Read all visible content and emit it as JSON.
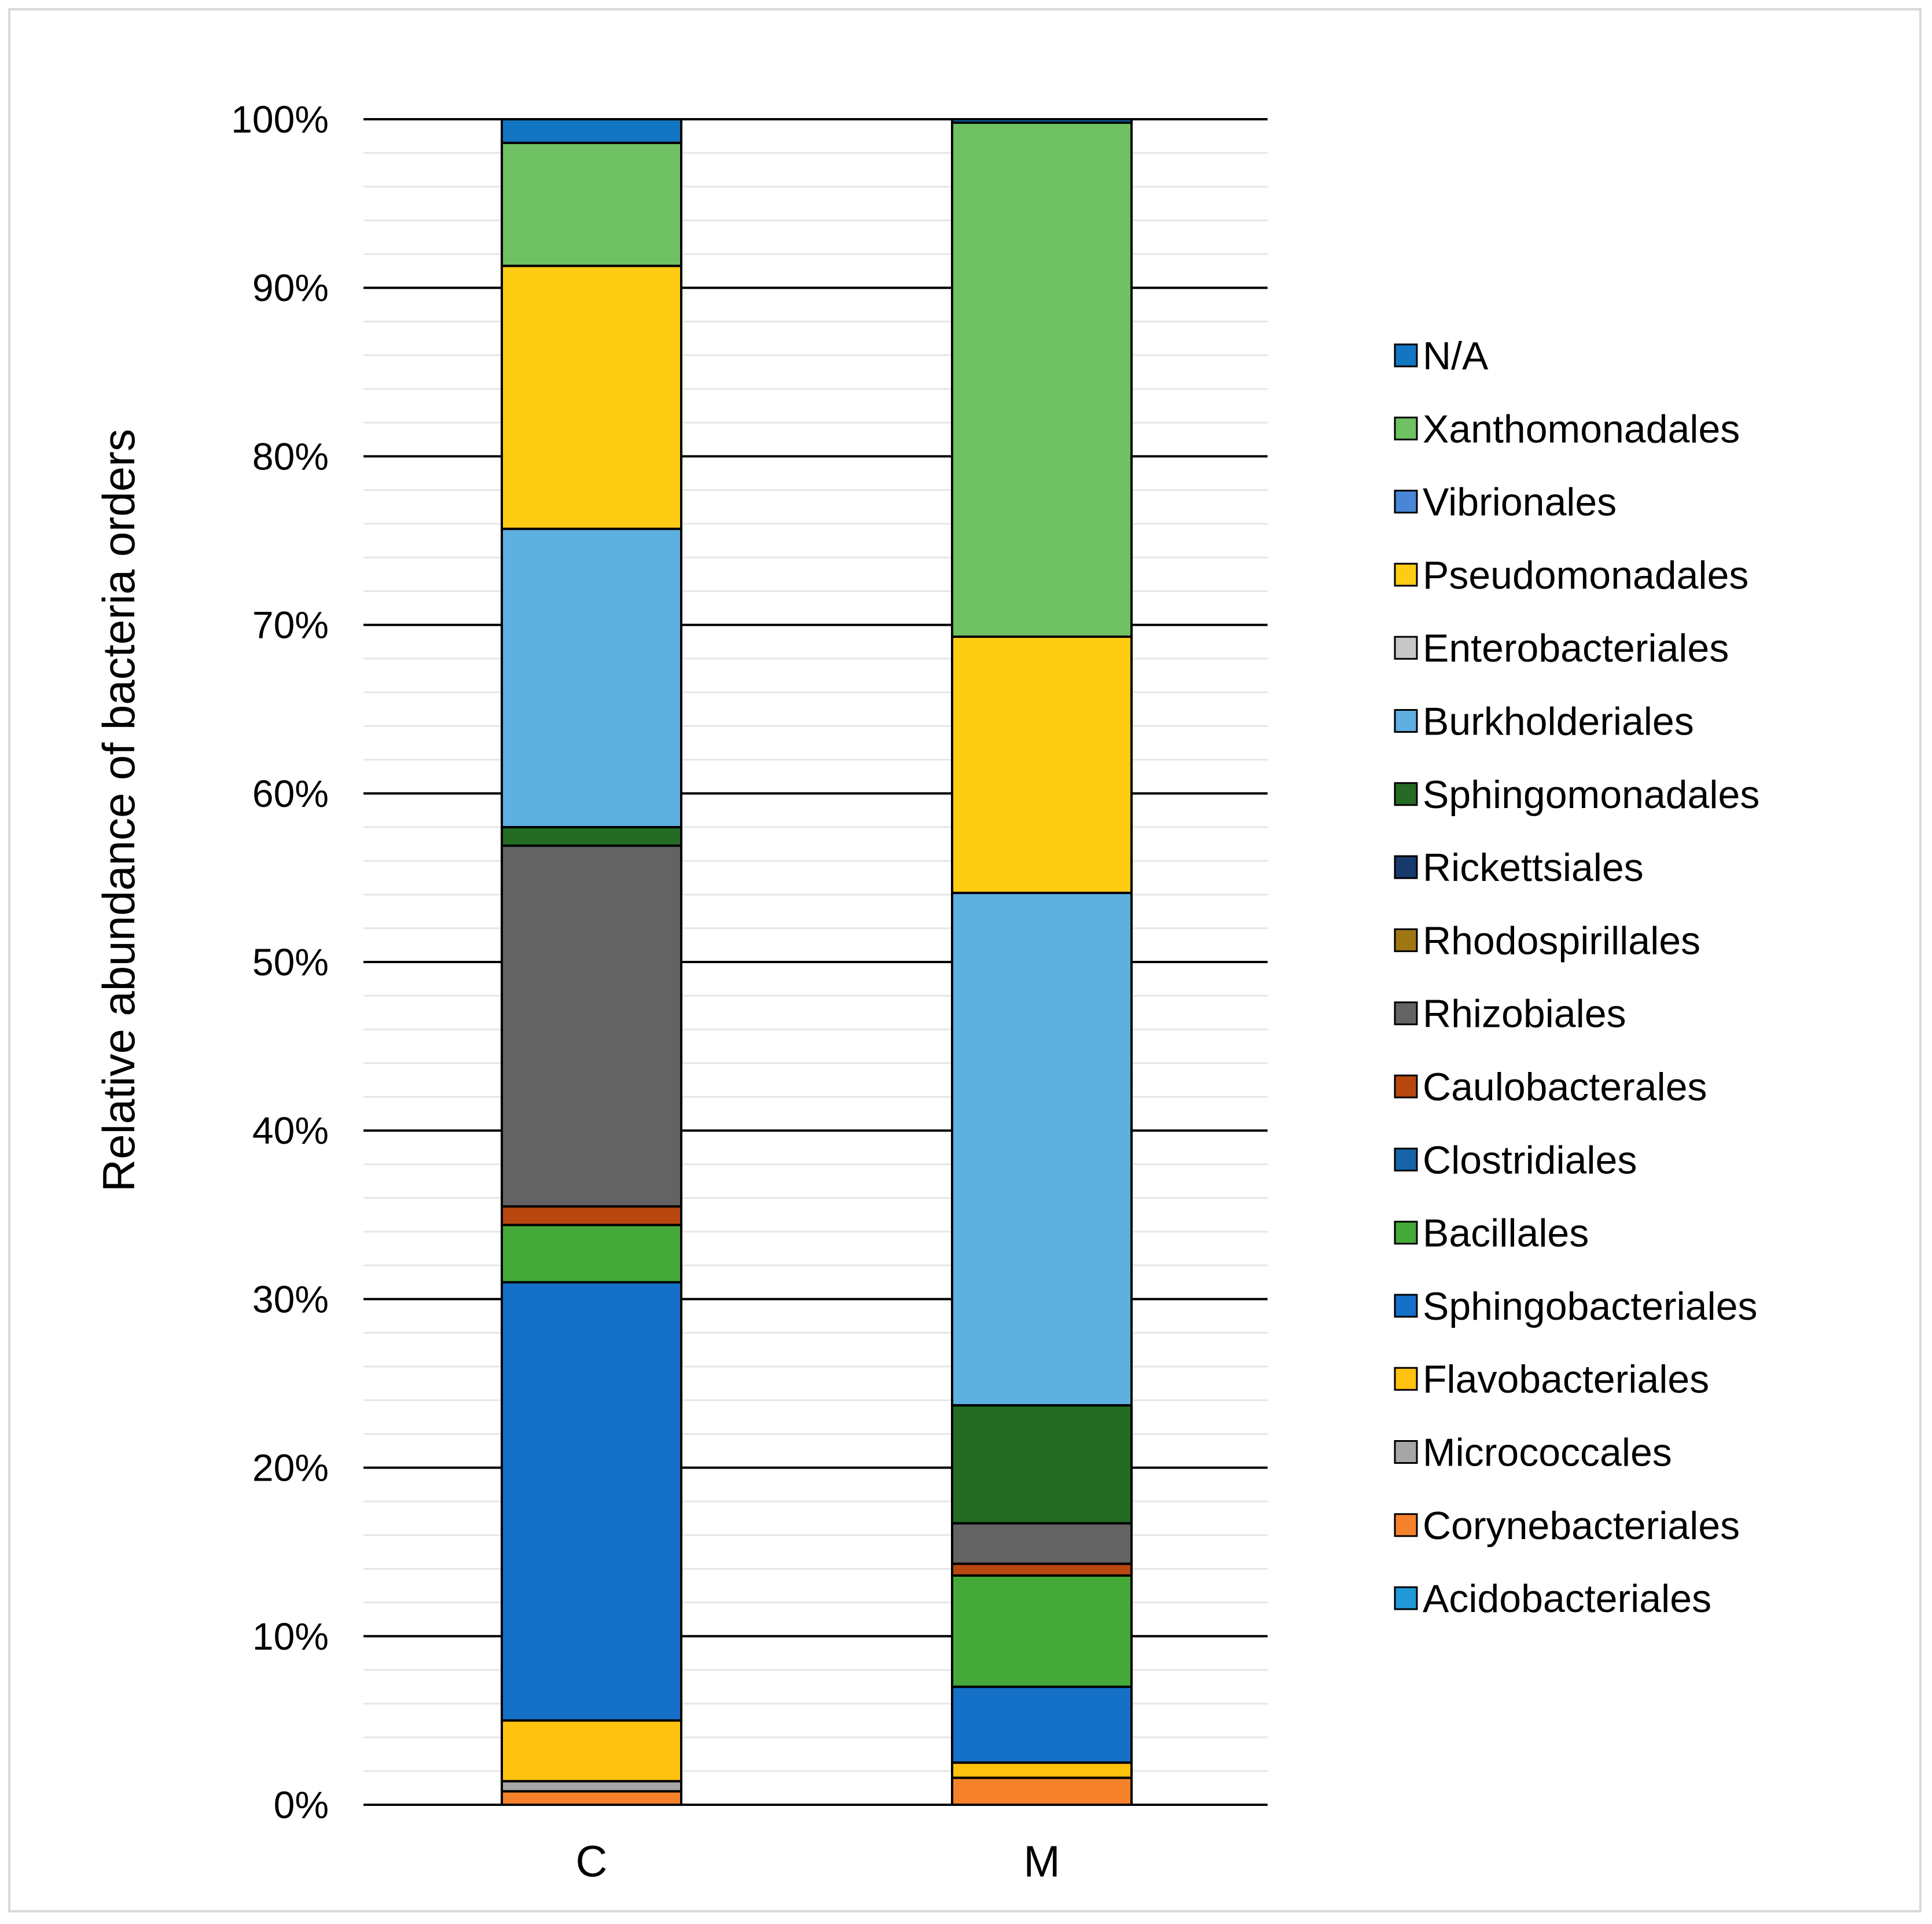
{
  "chart_data": {
    "type": "bar",
    "stacked": true,
    "percent_stacked": true,
    "title": "",
    "xlabel": "",
    "ylabel": "Relative abundance of bacteria orders",
    "ylim": [
      0,
      100
    ],
    "y_ticks": [
      "0%",
      "10%",
      "20%",
      "30%",
      "40%",
      "50%",
      "60%",
      "70%",
      "80%",
      "90%",
      "100%"
    ],
    "grid": true,
    "legend_position": "right",
    "categories": [
      "C",
      "M"
    ],
    "series": [
      {
        "name": "Acidobacteriales",
        "color": "#1f9ad6",
        "values": [
          0.0,
          0.0
        ]
      },
      {
        "name": "Corynebacteriales",
        "color": "#f5822a",
        "values": [
          0.8,
          1.6
        ]
      },
      {
        "name": "Micrococcales",
        "color": "#a6a6a6",
        "values": [
          0.6,
          0.0
        ]
      },
      {
        "name": "Flavobacteriales",
        "color": "#ffc20e",
        "values": [
          3.6,
          0.9
        ]
      },
      {
        "name": "Sphingobacteriales",
        "color": "#1570c8",
        "values": [
          26.0,
          4.5
        ]
      },
      {
        "name": "Bacillales",
        "color": "#45a939",
        "values": [
          3.4,
          6.6
        ]
      },
      {
        "name": "Clostridiales",
        "color": "#1565a8",
        "values": [
          0.0,
          0.0
        ]
      },
      {
        "name": "Caulobacterales",
        "color": "#b8470f",
        "values": [
          1.1,
          0.7
        ]
      },
      {
        "name": "Rhizobiales",
        "color": "#636363",
        "values": [
          21.4,
          2.4
        ]
      },
      {
        "name": "Rhodospirillales",
        "color": "#9e7712",
        "values": [
          0.0,
          0.0
        ]
      },
      {
        "name": "Rickettsiales",
        "color": "#163a6b",
        "values": [
          0.0,
          0.0
        ]
      },
      {
        "name": "Sphingomonadales",
        "color": "#246b24",
        "values": [
          1.1,
          7.0
        ]
      },
      {
        "name": "Burkholderiales",
        "color": "#5eb0e0",
        "values": [
          17.7,
          30.4
        ]
      },
      {
        "name": "Enterobacteriales",
        "color": "#c8c8c8",
        "values": [
          0.0,
          0.0
        ]
      },
      {
        "name": "Pseudomonadales",
        "color": "#ffcc14",
        "values": [
          15.6,
          15.2
        ]
      },
      {
        "name": "Vibrionales",
        "color": "#4a86d6",
        "values": [
          0.0,
          0.0
        ]
      },
      {
        "name": "Xanthomonadales",
        "color": "#6fc163",
        "values": [
          7.3,
          30.5
        ]
      },
      {
        "name": "N/A",
        "color": "#1276c2",
        "values": [
          1.4,
          0.2
        ]
      }
    ]
  }
}
